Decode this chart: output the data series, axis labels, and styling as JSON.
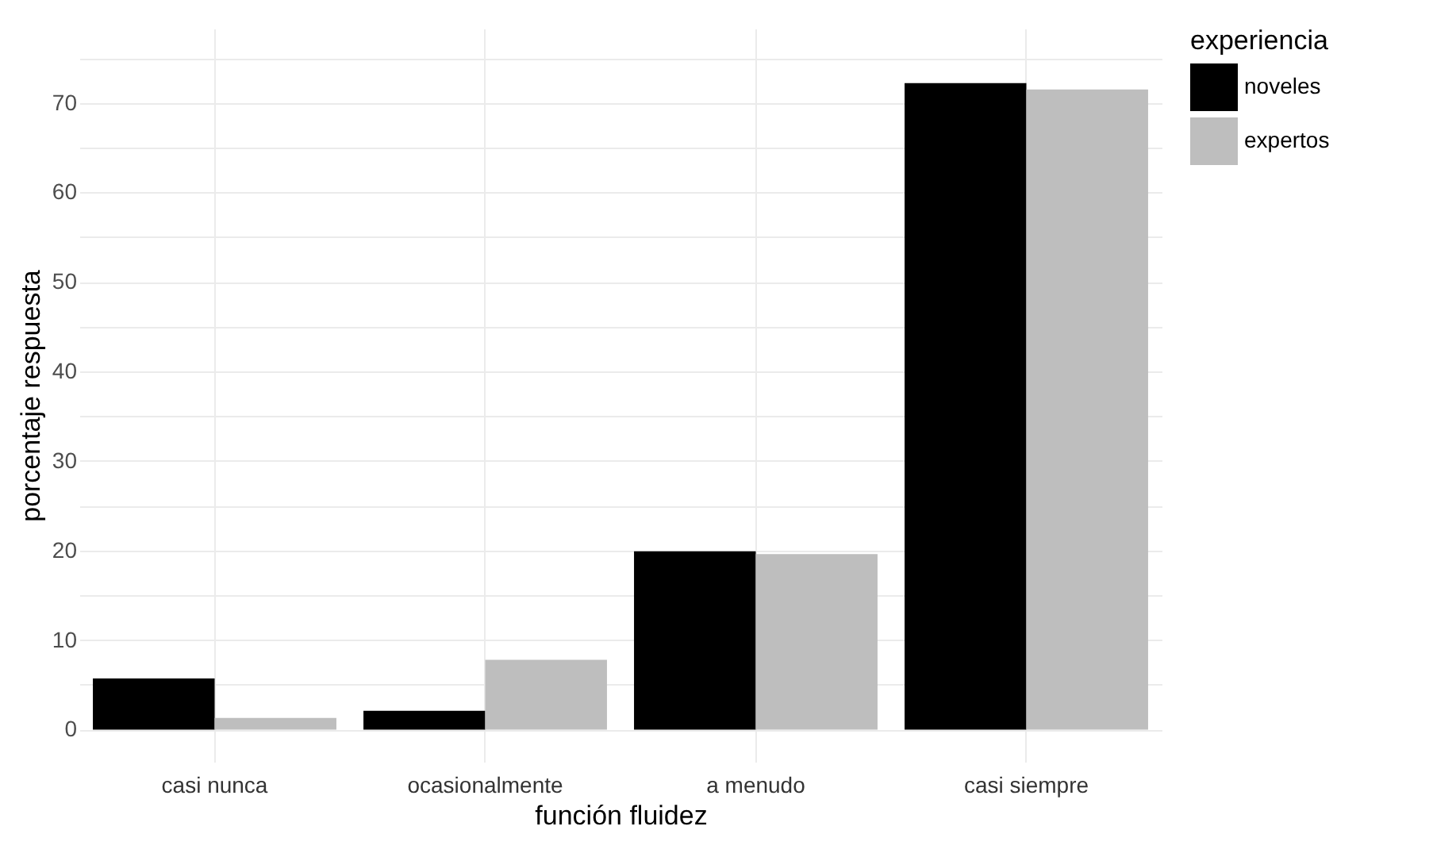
{
  "chart_data": {
    "type": "bar",
    "xlabel": "función fluidez",
    "ylabel": "porcentaje respuesta",
    "legend_title": "experiencia",
    "categories": [
      "casi nunca",
      "ocasionalmente",
      "a menudo",
      "casi siempre"
    ],
    "series": [
      {
        "name": "noveles",
        "color": "#000000",
        "values": [
          5.7,
          2.1,
          19.9,
          72.2
        ]
      },
      {
        "name": "expertos",
        "color": "#bebebe",
        "values": [
          1.3,
          7.8,
          19.6,
          71.5
        ]
      }
    ],
    "ylim": [
      -3.6,
      78.3
    ],
    "yticks": [
      0,
      {
        "value": 5,
        "label": null
      },
      10,
      {
        "value": 15,
        "label": null
      },
      20,
      {
        "value": 25,
        "label": null
      },
      30,
      {
        "value": 35,
        "label": null
      },
      40,
      {
        "value": 45,
        "label": null
      },
      50,
      {
        "value": 55,
        "label": null
      },
      60,
      {
        "value": 65,
        "label": null
      },
      70,
      {
        "value": 75,
        "label": null
      }
    ],
    "grid": true,
    "legend": "right"
  }
}
